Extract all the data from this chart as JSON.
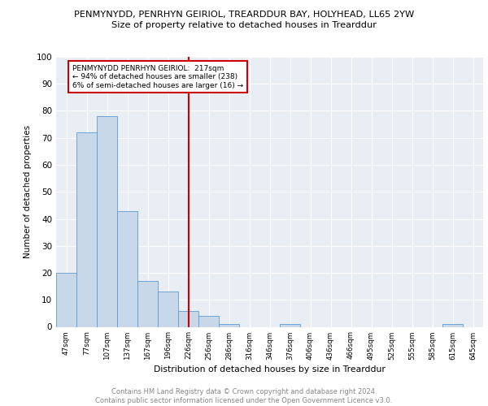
{
  "title1": "PENMYNYDD, PENRHYN GEIRIOL, TREARDDUR BAY, HOLYHEAD, LL65 2YW",
  "title2": "Size of property relative to detached houses in Trearddur",
  "xlabel": "Distribution of detached houses by size in Trearddur",
  "ylabel": "Number of detached properties",
  "categories": [
    "47sqm",
    "77sqm",
    "107sqm",
    "137sqm",
    "167sqm",
    "196sqm",
    "226sqm",
    "256sqm",
    "286sqm",
    "316sqm",
    "346sqm",
    "376sqm",
    "406sqm",
    "436sqm",
    "466sqm",
    "495sqm",
    "525sqm",
    "555sqm",
    "585sqm",
    "615sqm",
    "645sqm"
  ],
  "values": [
    20,
    72,
    78,
    43,
    17,
    13,
    6,
    4,
    1,
    0,
    0,
    1,
    0,
    0,
    0,
    0,
    0,
    0,
    0,
    1,
    0
  ],
  "bar_color": "#c8d8e8",
  "bar_edge_color": "#5b9bd5",
  "vline_x": 6.0,
  "vline_color": "#cc0000",
  "annotation_text": "PENMYNYDD PENRHYN GEIRIOL:  217sqm\n← 94% of detached houses are smaller (238)\n6% of semi-detached houses are larger (16) →",
  "annotation_box_color": "#cc0000",
  "ylim": [
    0,
    100
  ],
  "yticks": [
    0,
    10,
    20,
    30,
    40,
    50,
    60,
    70,
    80,
    90,
    100
  ],
  "footer": "Contains HM Land Registry data © Crown copyright and database right 2024.\nContains public sector information licensed under the Open Government Licence v3.0.",
  "bg_color": "#e8eef4",
  "grid_color": "#ffffff"
}
